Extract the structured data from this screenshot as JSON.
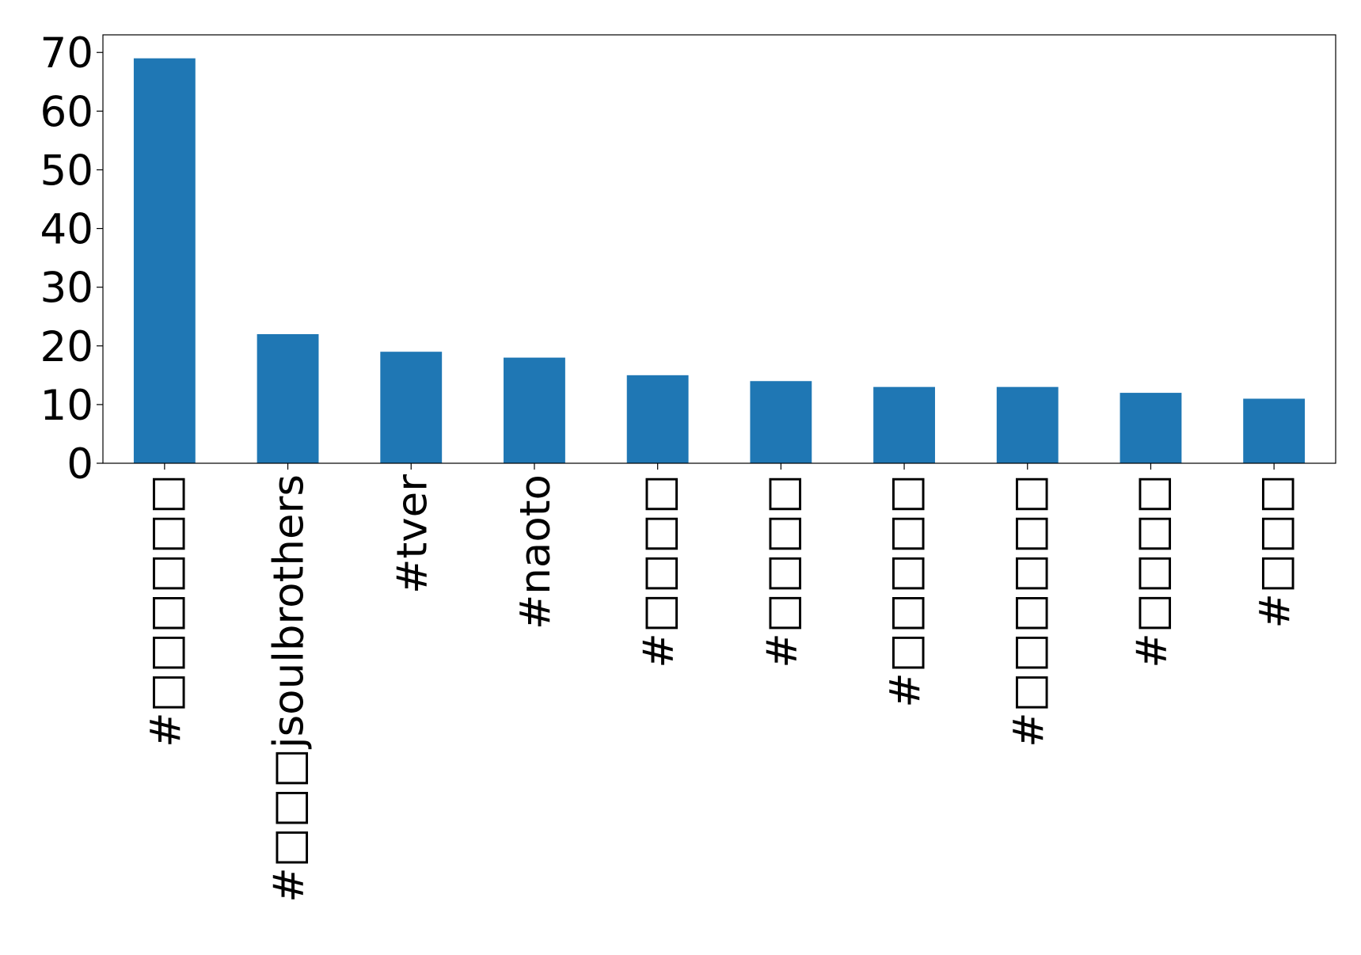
{
  "chart_data": {
    "type": "bar",
    "categories": [
      "#□□□□□□",
      "#□□□jsoulbrothers",
      "#tver",
      "#naoto",
      "#□□□□",
      "#□□□□",
      "#□□□□□",
      "#□□□□□□",
      "#□□□□",
      "#□□□"
    ],
    "values": [
      69,
      22,
      19,
      18,
      15,
      14,
      13,
      13,
      12,
      11
    ],
    "color": "#1f77b4",
    "ylim": [
      0,
      73
    ],
    "yticks": [
      0,
      10,
      20,
      30,
      40,
      50,
      60,
      70
    ],
    "grid": false
  }
}
